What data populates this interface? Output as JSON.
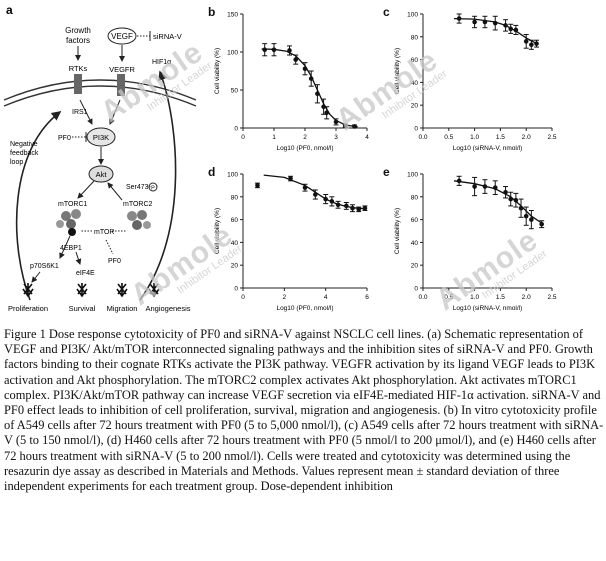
{
  "panels": {
    "a": {
      "letter": "a",
      "labels": {
        "growth_factors_1": "Growth",
        "growth_factors_2": "factors",
        "vegf": "VEGF",
        "sirna_v_top": "siRNA-V",
        "rtks": "RTKs",
        "vegfr": "VEGFR",
        "hif": "HIF1α",
        "irs1": "IRS1",
        "pf0_left": "PF0",
        "pi3k": "PI3K",
        "neg1": "Negative",
        "neg2": "feedback",
        "neg3": "loop",
        "akt": "Akt",
        "ser473": "Ser473-",
        "p_symbol": "P",
        "mtorc1": "mTORC1",
        "mtorc2": "mTORC2",
        "mtor": "mTOR",
        "ebp1": "4EBP1",
        "pf0_lower": "PF0",
        "p70": "p70S6K1",
        "eif4e": "eIF4E",
        "proliferation": "Proliferation",
        "survival": "Survival",
        "migration": "Migration",
        "angiogenesis": "Angiogenesis"
      }
    },
    "b": {
      "letter": "b"
    },
    "c": {
      "letter": "c"
    },
    "d": {
      "letter": "d"
    },
    "e": {
      "letter": "e"
    }
  },
  "watermark": {
    "brand": "Abmole",
    "tagline": "Inhibitor Leader"
  },
  "chart_data": [
    {
      "id": "b",
      "type": "line",
      "ylabel": "Cell viability (%)",
      "xlabel": "Log10 (PF0, nmol/l)",
      "xlim": [
        0,
        4
      ],
      "ylim": [
        0,
        150
      ],
      "xticks": [
        0,
        1,
        2,
        3,
        4
      ],
      "yticks": [
        0,
        50,
        100,
        150
      ],
      "points": [
        {
          "x": 0.7,
          "y": 103,
          "err": 8
        },
        {
          "x": 1.0,
          "y": 103,
          "err": 8
        },
        {
          "x": 1.5,
          "y": 102,
          "err": 6
        },
        {
          "x": 1.7,
          "y": 90,
          "err": 6
        },
        {
          "x": 2.0,
          "y": 78,
          "err": 8
        },
        {
          "x": 2.2,
          "y": 65,
          "err": 10
        },
        {
          "x": 2.4,
          "y": 45,
          "err": 12
        },
        {
          "x": 2.6,
          "y": 28,
          "err": 10
        },
        {
          "x": 2.7,
          "y": 20,
          "err": 8
        },
        {
          "x": 3.0,
          "y": 8,
          "err": 4
        },
        {
          "x": 3.3,
          "y": 3,
          "err": 2
        },
        {
          "x": 3.6,
          "y": 2,
          "err": 2
        }
      ],
      "fit": [
        [
          0.6,
          104
        ],
        [
          1.0,
          103.5
        ],
        [
          1.4,
          101
        ],
        [
          1.7,
          95
        ],
        [
          2.0,
          82
        ],
        [
          2.2,
          68
        ],
        [
          2.4,
          50
        ],
        [
          2.6,
          32
        ],
        [
          2.8,
          18
        ],
        [
          3.0,
          10
        ],
        [
          3.3,
          4
        ],
        [
          3.7,
          1.5
        ]
      ]
    },
    {
      "id": "c",
      "type": "line",
      "ylabel": "Cell viability (%)",
      "xlabel": "Log10 (siRNA-V, nmol/l)",
      "xlim": [
        0,
        2.5
      ],
      "ylim": [
        0,
        100
      ],
      "xticks": [
        0,
        0.5,
        1.0,
        1.5,
        2.0,
        2.5
      ],
      "yticks": [
        0,
        20,
        40,
        60,
        80,
        100
      ],
      "points": [
        {
          "x": 0.7,
          "y": 96,
          "err": 4
        },
        {
          "x": 1.0,
          "y": 93,
          "err": 5
        },
        {
          "x": 1.2,
          "y": 93,
          "err": 5
        },
        {
          "x": 1.4,
          "y": 92,
          "err": 6
        },
        {
          "x": 1.6,
          "y": 90,
          "err": 5
        },
        {
          "x": 1.7,
          "y": 87,
          "err": 4
        },
        {
          "x": 1.8,
          "y": 86,
          "err": 4
        },
        {
          "x": 2.0,
          "y": 76,
          "err": 6
        },
        {
          "x": 2.1,
          "y": 73,
          "err": 4
        },
        {
          "x": 2.2,
          "y": 74,
          "err": 3
        }
      ],
      "fit": [
        [
          0.6,
          96
        ],
        [
          1.0,
          95.5
        ],
        [
          1.4,
          93
        ],
        [
          1.6,
          90
        ],
        [
          1.8,
          85
        ],
        [
          2.0,
          79
        ],
        [
          2.2,
          74
        ]
      ]
    },
    {
      "id": "d",
      "type": "line",
      "ylabel": "Cell viability (%)",
      "xlabel": "Log10 (PF0, nmol/l)",
      "xlim": [
        0,
        6
      ],
      "ylim": [
        0,
        100
      ],
      "xticks": [
        0,
        2,
        4,
        6
      ],
      "yticks": [
        0,
        20,
        40,
        60,
        80,
        100
      ],
      "points": [
        {
          "x": 0.7,
          "y": 90,
          "err": 2
        },
        {
          "x": 2.3,
          "y": 96,
          "err": 2
        },
        {
          "x": 3.0,
          "y": 88,
          "err": 3
        },
        {
          "x": 3.5,
          "y": 82,
          "err": 4
        },
        {
          "x": 4.0,
          "y": 78,
          "err": 4
        },
        {
          "x": 4.3,
          "y": 76,
          "err": 4
        },
        {
          "x": 4.6,
          "y": 73,
          "err": 3
        },
        {
          "x": 5.0,
          "y": 72,
          "err": 3
        },
        {
          "x": 5.3,
          "y": 70,
          "err": 3
        },
        {
          "x": 5.6,
          "y": 69,
          "err": 2
        },
        {
          "x": 5.9,
          "y": 70,
          "err": 2
        }
      ],
      "fit": [
        [
          1.0,
          99
        ],
        [
          2.0,
          97
        ],
        [
          3.0,
          90
        ],
        [
          3.5,
          84
        ],
        [
          4.0,
          78
        ],
        [
          4.5,
          74
        ],
        [
          5.0,
          71.5
        ],
        [
          5.5,
          70
        ],
        [
          6.0,
          69.5
        ]
      ]
    },
    {
      "id": "e",
      "type": "line",
      "ylabel": "Cell viability (%)",
      "xlabel": "Log10 (siRNA-V, nmol/l)",
      "xlim": [
        0,
        2.5
      ],
      "ylim": [
        0,
        100
      ],
      "xticks": [
        0,
        0.5,
        1.0,
        1.5,
        2.0,
        2.5
      ],
      "yticks": [
        0,
        20,
        40,
        60,
        80,
        100
      ],
      "points": [
        {
          "x": 0.7,
          "y": 94,
          "err": 4
        },
        {
          "x": 1.0,
          "y": 89,
          "err": 8
        },
        {
          "x": 1.2,
          "y": 89,
          "err": 6
        },
        {
          "x": 1.4,
          "y": 88,
          "err": 6
        },
        {
          "x": 1.6,
          "y": 84,
          "err": 5
        },
        {
          "x": 1.7,
          "y": 78,
          "err": 6
        },
        {
          "x": 1.8,
          "y": 77,
          "err": 6
        },
        {
          "x": 1.9,
          "y": 70,
          "err": 8
        },
        {
          "x": 2.0,
          "y": 63,
          "err": 8
        },
        {
          "x": 2.1,
          "y": 60,
          "err": 8
        },
        {
          "x": 2.3,
          "y": 56,
          "err": 3
        }
      ],
      "fit": [
        [
          0.6,
          94
        ],
        [
          1.0,
          91.5
        ],
        [
          1.4,
          87
        ],
        [
          1.7,
          80
        ],
        [
          1.9,
          72
        ],
        [
          2.1,
          63
        ],
        [
          2.3,
          57
        ]
      ]
    }
  ],
  "caption": "Figure 1 Dose response cytotoxicity of PF0 and siRNA-V against NSCLC cell lines. (a) Schematic representation of VEGF and PI3K/ Akt/mTOR interconnected signaling pathways and the inhibition sites of siRNA-V and PF0. Growth factors binding to their cognate RTKs activate the PI3K pathway. VEGFR activation by its ligand VEGF leads to PI3K activation and Akt phosphorylation. The mTORC2 complex activates Akt phosphorylation. Akt activates mTORC1 complex. PI3K/Akt/mTOR pathway can increase VEGF secretion via eIF4E-mediated HIF-1α activation. siRNA-V and PF0 effect leads to inhibition of cell proliferation, survival, migration and angiogenesis. (b) In vitro cytotoxicity profile of A549 cells after 72 hours treatment with PF0 (5 to 5,000 nmol/l), (c) A549 cells after 72 hours treatment with siRNA-V (5 to 150 nmol/l), (d) H460 cells after 72 hours treatment with PF0 (5 nmol/l to 200 μmol/l), and (e) H460 cells after 72 hours treatment with siRNA-V (5 to 200 nmol/l). Cells were treated and cytotoxicity was determined using the resazurin dye assay as described in Materials and Methods. Values represent mean ± standard deviation of three independent experiments for each treatment group. Dose-dependent inhibition"
}
